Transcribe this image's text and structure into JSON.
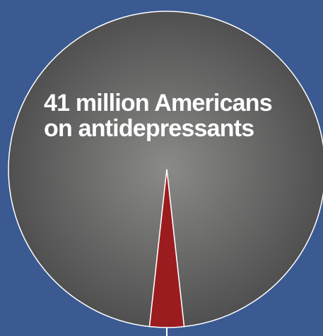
{
  "colors": {
    "background": "#3a5a91",
    "pie_main_center": "#8a8a88",
    "pie_main_edge": "#505050",
    "slice_highlight": "#9b1c1f",
    "outline": "#ffffff"
  },
  "chart_data": {
    "type": "pie",
    "title": "",
    "annotation": {
      "line1": "41 million Americans",
      "line2": "on antidepressants"
    },
    "slices": [
      {
        "value": 41,
        "color": "#9b1c1f",
        "highlighted": true
      },
      {
        "value": 1134,
        "color": "#5a5a5a",
        "highlighted": false
      }
    ],
    "start_angle_deg": 180,
    "legend": "none"
  }
}
